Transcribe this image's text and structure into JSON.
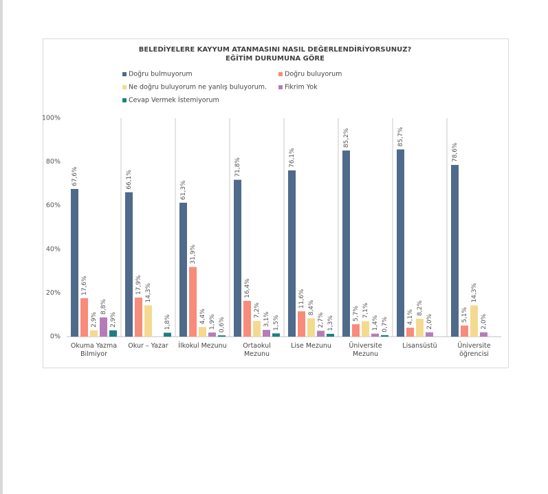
{
  "chart_data": {
    "type": "bar",
    "title": "BELEDİYELERE KAYYUM ATANMASINI NASIL DEĞERLENDİRİYORSUNUZ?",
    "subtitle": "EĞİTİM DURUMUNA GÖRE",
    "categories": [
      "Okuma Yazma Bilmiyor",
      "Okur – Yazar",
      "İlkokul Mezunu",
      "Ortaokul Mezunu",
      "Lise Mezunu",
      "Üniversite Mezunu",
      "Lisansüstü",
      "Üniversite öğrencisi"
    ],
    "series": [
      {
        "name": "Doğru bulmuyorum",
        "color": "#4f6a8b",
        "values": [
          67.6,
          66.1,
          61.3,
          71.8,
          76.1,
          85.2,
          85.7,
          78.6
        ],
        "value_labels": [
          "67,6%",
          "66,1%",
          "61,3%",
          "71,8%",
          "76,1%",
          "85,2%",
          "85,7%",
          "78,6%"
        ]
      },
      {
        "name": "Doğru buluyorum",
        "color": "#f98b7b",
        "values": [
          17.6,
          17.9,
          31.9,
          16.4,
          11.6,
          5.7,
          4.1,
          5.1
        ],
        "value_labels": [
          "17,6%",
          "17,9%",
          "31,9%",
          "16,4%",
          "11,6%",
          "5,7%",
          "4,1%",
          "5,1%"
        ]
      },
      {
        "name": "Ne doğru buluyorum ne yanlış buluyorum.",
        "color": "#f4da8f",
        "values": [
          2.9,
          14.3,
          4.4,
          7.2,
          8.4,
          7.1,
          8.2,
          14.3
        ],
        "value_labels": [
          "2,9%",
          "14,3%",
          "4,4%",
          "7,2%",
          "8,4%",
          "7,1%",
          "8,2%",
          "14,3%"
        ]
      },
      {
        "name": "Fikrim Yok",
        "color": "#b67cb9",
        "values": [
          8.8,
          null,
          1.9,
          3.1,
          2.7,
          1.4,
          2.0,
          2.0
        ],
        "value_labels": [
          "8,8%",
          null,
          "1,9%",
          "3,1%",
          "2,7%",
          "1,4%",
          "2,0%",
          "2,0%"
        ]
      },
      {
        "name": "Cevap Vermek İstemiyorum",
        "color": "#1d8080",
        "values": [
          2.9,
          1.8,
          0.6,
          1.5,
          1.3,
          0.7,
          null,
          null
        ],
        "value_labels": [
          "2,9%",
          "1,8%",
          "0,6%",
          "1,5%",
          "1,3%",
          "0,7%",
          null,
          null
        ]
      }
    ],
    "ylim": [
      0,
      100
    ],
    "yticks": [
      {
        "value": 0,
        "label": "0%"
      },
      {
        "value": 20,
        "label": "20%"
      },
      {
        "value": 40,
        "label": "40%"
      },
      {
        "value": 60,
        "label": "60%"
      },
      {
        "value": 80,
        "label": "80%"
      },
      {
        "value": 100,
        "label": "100%"
      }
    ]
  }
}
